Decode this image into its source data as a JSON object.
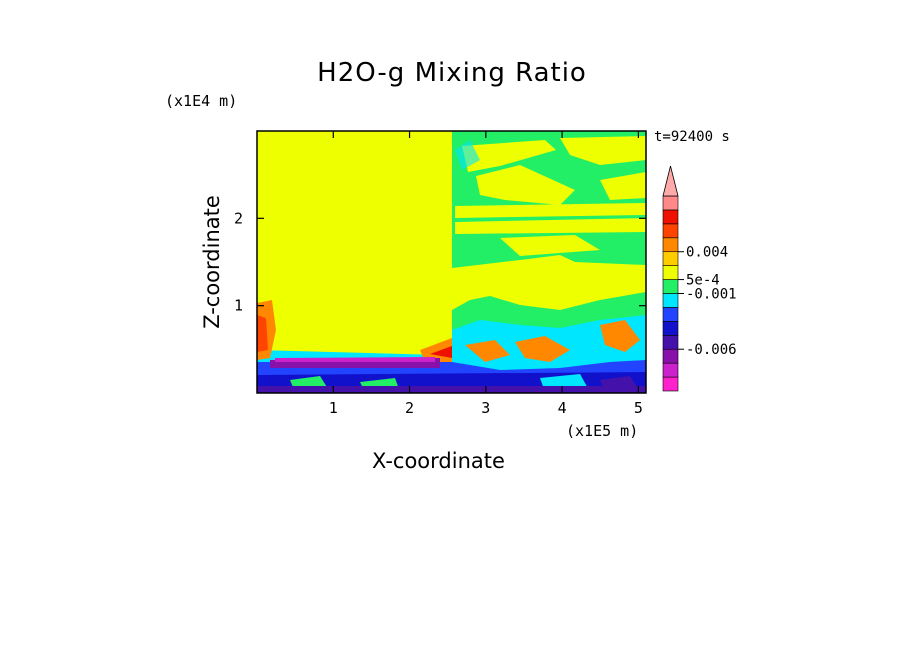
{
  "chart_data": {
    "type": "heatmap",
    "title": "H2O-g Mixing Ratio",
    "xlabel": "X-coordinate",
    "ylabel": "Z-coordinate",
    "x_unit": "(x1E5 m)",
    "y_unit": "(x1E4 m)",
    "time_label": "t=92400 s",
    "xlim": [
      0,
      5.1
    ],
    "ylim": [
      0,
      3.0
    ],
    "x_ticks": [
      1,
      2,
      3,
      4,
      5
    ],
    "y_ticks": [
      1,
      2
    ],
    "colorbar": {
      "colors": [
        "#ff22cc",
        "#cc22cc",
        "#8811aa",
        "#4411aa",
        "#1111cc",
        "#2244ff",
        "#00e6ff",
        "#22ee66",
        "#eeff00",
        "#ffcc00",
        "#ff8800",
        "#ff4400",
        "#ee1100",
        "#ff8888",
        "#ffaaaa"
      ],
      "labels": [
        {
          "text": "0.004",
          "value": 0.004
        },
        {
          "text": "5e-4",
          "value": 0.0005
        },
        {
          "text": "-0.001",
          "value": -0.001
        },
        {
          "text": "-0.006",
          "value": -0.006
        }
      ],
      "extend": "max"
    },
    "regions": [
      {
        "name": "background",
        "value": 0.0
      },
      {
        "name": "upper-banded-layer",
        "value": -0.0005
      },
      {
        "name": "low-level-moist-band",
        "value": 0.003
      },
      {
        "name": "boundary-layer",
        "value": -0.005
      },
      {
        "name": "surface-layer",
        "value": -0.008
      }
    ]
  }
}
